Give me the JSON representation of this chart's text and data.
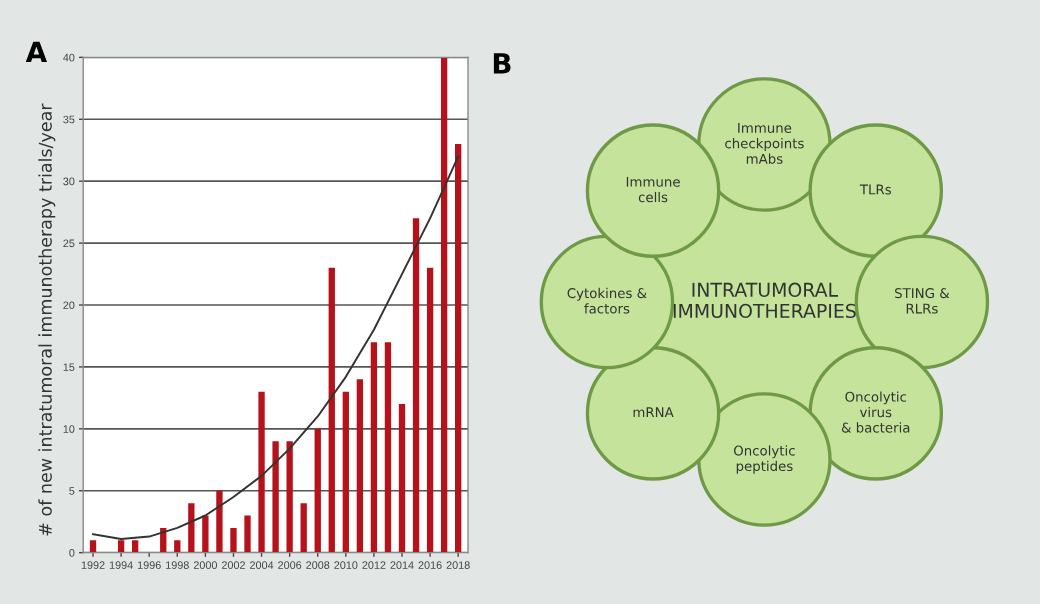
{
  "chart_data": [
    {
      "type": "bar",
      "title": "A",
      "ylabel": "# of new intratumoral immunotherapy trials/year",
      "x": [
        1992,
        1993,
        1994,
        1995,
        1996,
        1997,
        1998,
        1999,
        2000,
        2001,
        2002,
        2003,
        2004,
        2005,
        2006,
        2007,
        2008,
        2009,
        2010,
        2011,
        2012,
        2013,
        2014,
        2015,
        2016,
        2017,
        2018
      ],
      "series": [
        {
          "type": "bar",
          "color": "#b5121b",
          "values": [
            1,
            0,
            1,
            1,
            0,
            2,
            1,
            4,
            3,
            5,
            2,
            3,
            13,
            9,
            9,
            4,
            10,
            23,
            13,
            14,
            17,
            17,
            12,
            27,
            23,
            40,
            33
          ]
        },
        {
          "type": "line",
          "color": "#333333",
          "x": [
            1992,
            1994,
            1996,
            1998,
            2000,
            2002,
            2004,
            2006,
            2008,
            2010,
            2012,
            2014,
            2016,
            2018
          ],
          "values": [
            1.5,
            1.1,
            1.3,
            2.0,
            3.0,
            4.5,
            6.2,
            8.4,
            11.0,
            14.2,
            18.0,
            22.5,
            27.0,
            32.0
          ]
        }
      ],
      "xlim": [
        1991.3,
        2018.7
      ],
      "xticks": [
        1992,
        1994,
        1996,
        1998,
        2000,
        2002,
        2004,
        2006,
        2008,
        2010,
        2012,
        2014,
        2016,
        2018
      ],
      "ylim": [
        0,
        40
      ],
      "yticks": [
        0,
        5,
        10,
        15,
        20,
        25,
        30,
        35,
        40
      ],
      "grid": "y",
      "legend": false
    },
    {
      "type": "other",
      "title": "B",
      "annotations": [
        "INTRATUMORAL\nIMMUNOTHERAPIES",
        "Immune\ncheckpoints\nmAbs",
        "TLRs",
        "STING &\nRLRs",
        "Oncolytic\nvirus\n& bacteria",
        "Oncolytic\npeptides",
        "mRNA",
        "Cytokines &\nfactors",
        "Immune\ncells"
      ]
    }
  ]
}
